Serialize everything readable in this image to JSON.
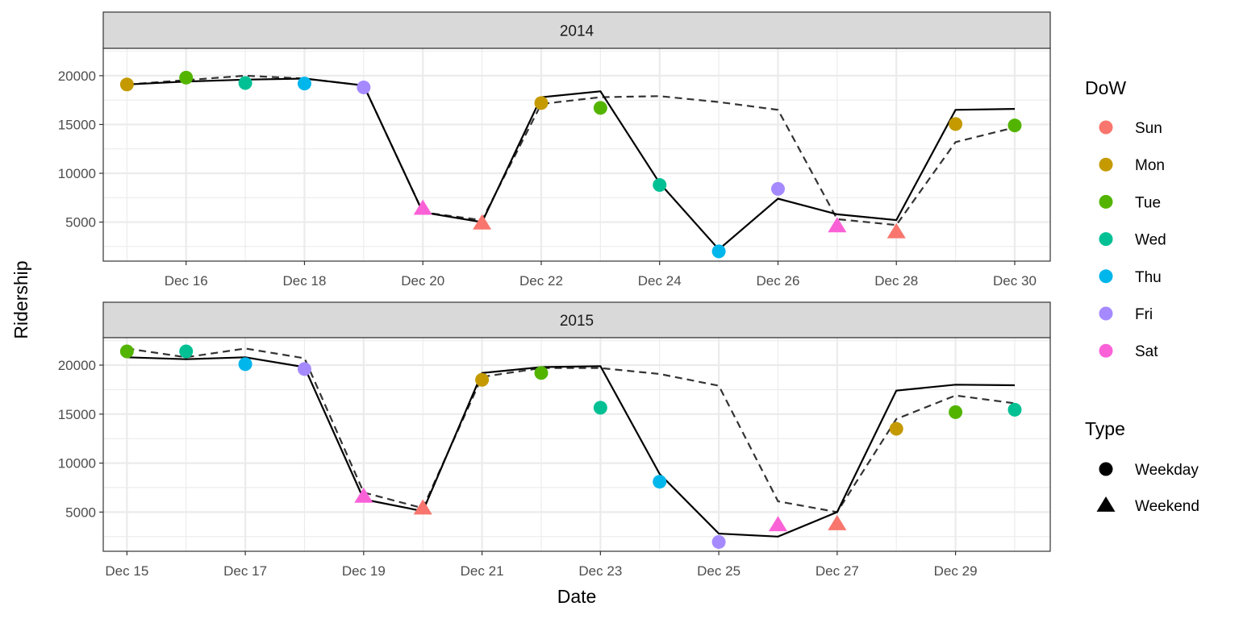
{
  "chart_data": {
    "type": "line",
    "xlabel": "Date",
    "ylabel": "Ridership",
    "y_ticks": [
      5000,
      10000,
      15000,
      20000
    ],
    "y_gridlines": [
      2500,
      5000,
      7500,
      10000,
      12500,
      15000,
      17500,
      20000,
      22500
    ],
    "ylim": [
      1000,
      22800
    ],
    "colors": {
      "Sun": "#F8766D",
      "Mon": "#C49A00",
      "Tue": "#53B400",
      "Wed": "#00C094",
      "Thu": "#00B6EB",
      "Fri": "#A58AFF",
      "Sat": "#FB61D7"
    },
    "legend_dow": {
      "title": "DoW",
      "entries": [
        "Sun",
        "Mon",
        "Tue",
        "Wed",
        "Thu",
        "Fri",
        "Sat"
      ]
    },
    "legend_type": {
      "title": "Type",
      "entries": [
        {
          "label": "Weekday",
          "shape": "circle"
        },
        {
          "label": "Weekend",
          "shape": "triangle"
        }
      ]
    },
    "facets": [
      {
        "strip": "2014",
        "xlim": [
          14.6,
          30.6
        ],
        "x_ticks": [
          16,
          18,
          20,
          22,
          24,
          26,
          28,
          30
        ],
        "x_ticklabels": [
          "Dec 16",
          "Dec 18",
          "Dec 20",
          "Dec 22",
          "Dec 24",
          "Dec 26",
          "Dec 28",
          "Dec 30"
        ],
        "points": [
          {
            "x": 15,
            "y": 19100,
            "dow": "Mon",
            "type": "Weekday"
          },
          {
            "x": 16,
            "y": 19800,
            "dow": "Tue",
            "type": "Weekday"
          },
          {
            "x": 17,
            "y": 19250,
            "dow": "Wed",
            "type": "Weekday"
          },
          {
            "x": 18,
            "y": 19200,
            "dow": "Thu",
            "type": "Weekday"
          },
          {
            "x": 19,
            "y": 18800,
            "dow": "Fri",
            "type": "Weekday"
          },
          {
            "x": 20,
            "y": 6400,
            "dow": "Sat",
            "type": "Weekend"
          },
          {
            "x": 21,
            "y": 4900,
            "dow": "Sun",
            "type": "Weekend"
          },
          {
            "x": 22,
            "y": 17200,
            "dow": "Mon",
            "type": "Weekday"
          },
          {
            "x": 23,
            "y": 16700,
            "dow": "Tue",
            "type": "Weekday"
          },
          {
            "x": 24,
            "y": 8800,
            "dow": "Wed",
            "type": "Weekday"
          },
          {
            "x": 25,
            "y": 2000,
            "dow": "Thu",
            "type": "Weekday"
          },
          {
            "x": 26,
            "y": 8400,
            "dow": "Fri",
            "type": "Weekday"
          },
          {
            "x": 27,
            "y": 4600,
            "dow": "Sat",
            "type": "Weekend"
          },
          {
            "x": 28,
            "y": 4000,
            "dow": "Sun",
            "type": "Weekend"
          },
          {
            "x": 29,
            "y": 15050,
            "dow": "Mon",
            "type": "Weekday"
          },
          {
            "x": 30,
            "y": 14900,
            "dow": "Tue",
            "type": "Weekday"
          }
        ],
        "solid_line": [
          [
            15,
            19100
          ],
          [
            16,
            19400
          ],
          [
            17,
            19600
          ],
          [
            18,
            19700
          ],
          [
            19,
            19000
          ],
          [
            20,
            6000
          ],
          [
            21,
            5000
          ],
          [
            22,
            17800
          ],
          [
            23,
            18400
          ],
          [
            24,
            9000
          ],
          [
            25,
            2200
          ],
          [
            26,
            7400
          ],
          [
            27,
            5800
          ],
          [
            28,
            5200
          ],
          [
            29,
            16500
          ],
          [
            30,
            16600
          ]
        ],
        "dashed_line": [
          [
            15,
            19100
          ],
          [
            16,
            19550
          ],
          [
            17,
            20000
          ],
          [
            18,
            19700
          ],
          [
            19,
            19000
          ],
          [
            20,
            6000
          ],
          [
            21,
            5200
          ],
          [
            22,
            17100
          ],
          [
            23,
            17800
          ],
          [
            24,
            17900
          ],
          [
            25,
            17300
          ],
          [
            26,
            16500
          ],
          [
            27,
            5300
          ],
          [
            28,
            4700
          ],
          [
            29,
            13200
          ],
          [
            30,
            14700
          ]
        ]
      },
      {
        "strip": "2015",
        "xlim": [
          14.6,
          30.6
        ],
        "x_ticks": [
          15,
          17,
          19,
          21,
          23,
          25,
          27,
          29
        ],
        "x_ticklabels": [
          "Dec 15",
          "Dec 17",
          "Dec 19",
          "Dec 21",
          "Dec 23",
          "Dec 25",
          "Dec 27",
          "Dec 29"
        ],
        "points": [
          {
            "x": 15,
            "y": 21400,
            "dow": "Tue",
            "type": "Weekday"
          },
          {
            "x": 16,
            "y": 21400,
            "dow": "Wed",
            "type": "Weekday"
          },
          {
            "x": 17,
            "y": 20100,
            "dow": "Thu",
            "type": "Weekday"
          },
          {
            "x": 18,
            "y": 19600,
            "dow": "Fri",
            "type": "Weekday"
          },
          {
            "x": 19,
            "y": 6600,
            "dow": "Sat",
            "type": "Weekend"
          },
          {
            "x": 20,
            "y": 5400,
            "dow": "Sun",
            "type": "Weekend"
          },
          {
            "x": 21,
            "y": 18500,
            "dow": "Mon",
            "type": "Weekday"
          },
          {
            "x": 22,
            "y": 19200,
            "dow": "Tue",
            "type": "Weekday"
          },
          {
            "x": 23,
            "y": 15650,
            "dow": "Wed",
            "type": "Weekday"
          },
          {
            "x": 24,
            "y": 8100,
            "dow": "Thu",
            "type": "Weekday"
          },
          {
            "x": 25,
            "y": 1950,
            "dow": "Fri",
            "type": "Weekday"
          },
          {
            "x": 26,
            "y": 3700,
            "dow": "Sat",
            "type": "Weekend"
          },
          {
            "x": 27,
            "y": 3800,
            "dow": "Sun",
            "type": "Weekend"
          },
          {
            "x": 28,
            "y": 13500,
            "dow": "Mon",
            "type": "Weekday"
          },
          {
            "x": 29,
            "y": 15200,
            "dow": "Tue",
            "type": "Weekday"
          },
          {
            "x": 30,
            "y": 15450,
            "dow": "Wed",
            "type": "Weekday"
          }
        ],
        "solid_line": [
          [
            15,
            20800
          ],
          [
            16,
            20600
          ],
          [
            17,
            20800
          ],
          [
            18,
            19800
          ],
          [
            19,
            6300
          ],
          [
            20,
            5100
          ],
          [
            21,
            19200
          ],
          [
            22,
            19800
          ],
          [
            23,
            19900
          ],
          [
            24,
            8900
          ],
          [
            25,
            2800
          ],
          [
            26,
            2500
          ],
          [
            27,
            5000
          ],
          [
            28,
            17400
          ],
          [
            29,
            18000
          ],
          [
            30,
            17950
          ]
        ],
        "dashed_line": [
          [
            15,
            21700
          ],
          [
            16,
            20800
          ],
          [
            17,
            21700
          ],
          [
            18,
            20700
          ],
          [
            19,
            7000
          ],
          [
            20,
            5400
          ],
          [
            21,
            18800
          ],
          [
            22,
            19700
          ],
          [
            23,
            19700
          ],
          [
            24,
            19100
          ],
          [
            25,
            17900
          ],
          [
            26,
            6100
          ],
          [
            27,
            5000
          ],
          [
            28,
            14500
          ],
          [
            29,
            16900
          ],
          [
            30,
            16100
          ]
        ]
      }
    ]
  }
}
